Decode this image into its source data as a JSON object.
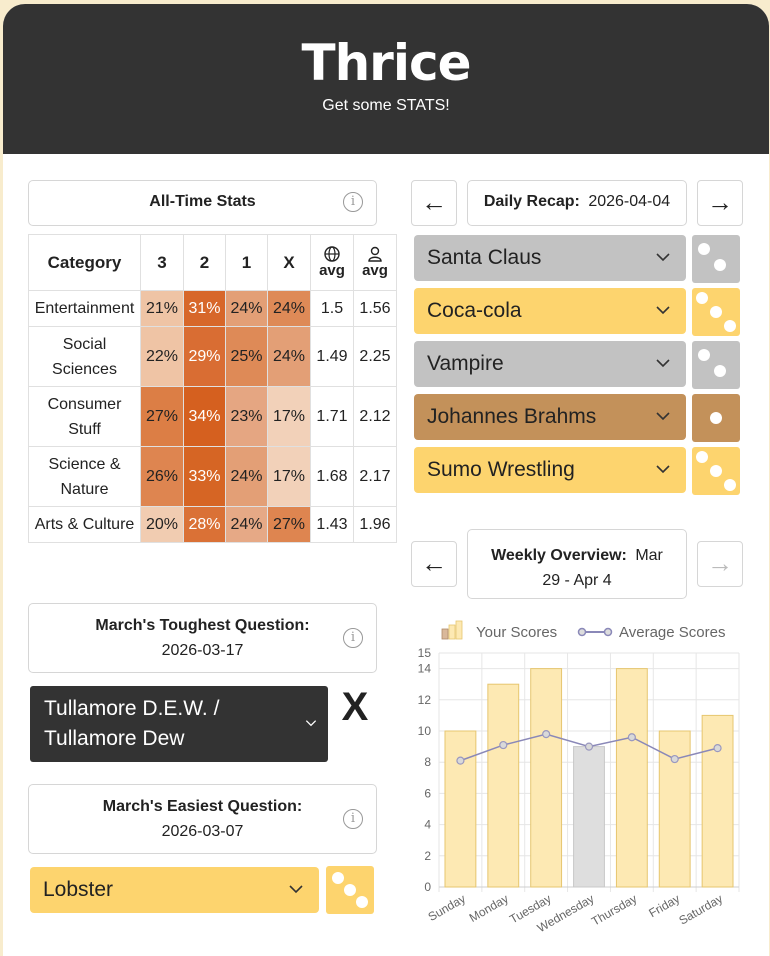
{
  "header": {
    "title": "Thrice",
    "subtitle": "Get some STATS!"
  },
  "all_time": {
    "title": "All-Time Stats",
    "columns": [
      "Category",
      "3",
      "2",
      "1",
      "X",
      "avg",
      "avg"
    ],
    "rows": [
      {
        "category": "Entertainment",
        "p3": "21%",
        "p2": "31%",
        "p1": "24%",
        "px": "24%",
        "global_avg": "1.5",
        "user_avg": "1.56"
      },
      {
        "category": "Social Sciences",
        "p3": "22%",
        "p2": "29%",
        "p1": "25%",
        "px": "24%",
        "global_avg": "1.49",
        "user_avg": "2.25"
      },
      {
        "category": "Consumer Stuff",
        "p3": "27%",
        "p2": "34%",
        "p1": "23%",
        "px": "17%",
        "global_avg": "1.71",
        "user_avg": "2.12"
      },
      {
        "category": "Science & Nature",
        "p3": "26%",
        "p2": "33%",
        "p1": "24%",
        "px": "17%",
        "global_avg": "1.68",
        "user_avg": "2.17"
      },
      {
        "category": "Arts & Culture",
        "p3": "20%",
        "p2": "28%",
        "p1": "24%",
        "px": "27%",
        "global_avg": "1.43",
        "user_avg": "1.96"
      }
    ],
    "icons": {
      "global": "globe-icon",
      "user": "user-icon",
      "info": "info-icon"
    }
  },
  "daily_recap": {
    "label": "Daily Recap:",
    "date": "2026-04-04",
    "prev": "←",
    "next": "→",
    "answers": [
      {
        "text": "Santa Claus",
        "color": "#c2c2c2",
        "score": 2
      },
      {
        "text": "Coca-cola",
        "color": "#fdd46e",
        "score": 3
      },
      {
        "text": "Vampire",
        "color": "#c2c2c2",
        "score": 2
      },
      {
        "text": "Johannes Brahms",
        "color": "#c3915a",
        "score": 1
      },
      {
        "text": "Sumo Wrestling",
        "color": "#fdd46e",
        "score": 3
      }
    ]
  },
  "weekly": {
    "label": "Weekly Overview:",
    "range_line1": "Mar",
    "range_line2": "29 - Apr 4",
    "prev": "←",
    "next": "→"
  },
  "toughest": {
    "title": "March's Toughest Question:",
    "date": "2026-03-17",
    "answer": "Tullamore D.E.W. / Tullamore Dew",
    "answer_line1": "Tullamore D.E.W. /",
    "answer_line2": "Tullamore Dew",
    "result": "X",
    "color": "#333333"
  },
  "easiest": {
    "title": "March's Easiest Question:",
    "date": "2026-03-07",
    "answer": "Lobster",
    "color": "#fdd46e",
    "score": 3
  },
  "chart_data": {
    "type": "bar",
    "categories": [
      "Sunday",
      "Monday",
      "Tuesday",
      "Wednesday",
      "Thursday",
      "Friday",
      "Saturday"
    ],
    "series": [
      {
        "name": "Your Scores",
        "type": "bar",
        "values": [
          10,
          13,
          14,
          9,
          14,
          10,
          11
        ],
        "highlight_index": 3
      },
      {
        "name": "Average Scores",
        "type": "line",
        "values": [
          8.1,
          9.1,
          9.8,
          9.0,
          9.6,
          8.2,
          8.9
        ]
      }
    ],
    "yticks": [
      "0",
      "2",
      "4",
      "6",
      "8",
      "10",
      "12",
      "14",
      "15"
    ],
    "ylim": [
      0,
      15
    ],
    "legend": "top",
    "grid": true,
    "colors": {
      "bar": "#fde9b3",
      "bar_border": "#e6c66f",
      "bar_highlight": "#dedede",
      "line": "#8a88b8"
    }
  }
}
